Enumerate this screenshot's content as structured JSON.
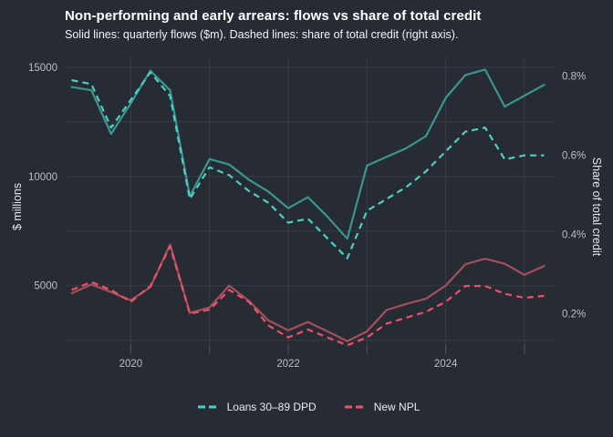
{
  "chart_data": {
    "type": "line",
    "title": "Non-performing and early arrears: flows vs share of total credit",
    "subtitle": "Solid lines: quarterly flows ($m). Dashed lines: share of total credit (right axis).",
    "grid": true,
    "legend_position": "bottom-center",
    "colors": {
      "background": "#272b34",
      "grid": "#363c46",
      "tick_stub": "#4e5560",
      "tick_text": "#b9bec6",
      "title_text": "#ffffff"
    },
    "quarters": [
      "2019Q1",
      "2019Q2",
      "2019Q3",
      "2019Q4",
      "2020Q1",
      "2020Q2",
      "2020Q3",
      "2020Q4",
      "2021Q1",
      "2021Q2",
      "2021Q3",
      "2021Q4",
      "2022Q1",
      "2022Q2",
      "2022Q3",
      "2022Q4",
      "2023Q1",
      "2023Q2",
      "2023Q3",
      "2023Q4",
      "2024Q1",
      "2024Q2",
      "2024Q3",
      "2024Q4",
      "2025Q1"
    ],
    "series": [
      {
        "name": "Loans 30–89 DPD",
        "color": "#49d2c4",
        "solid_color": "#3a968e",
        "flows_m": [
          14100,
          13950,
          11950,
          13350,
          14850,
          13950,
          9100,
          10800,
          10550,
          9850,
          9300,
          8550,
          9050,
          8150,
          7150,
          10500,
          10900,
          11300,
          11850,
          13600,
          14650,
          14900,
          13200,
          13700,
          14200
        ],
        "share_pct": [
          0.79,
          0.78,
          0.67,
          0.74,
          0.81,
          0.75,
          0.49,
          0.57,
          0.55,
          0.51,
          0.48,
          0.43,
          0.44,
          0.39,
          0.34,
          0.46,
          0.49,
          0.52,
          0.56,
          0.61,
          0.66,
          0.67,
          0.59,
          0.6,
          0.6
        ]
      },
      {
        "name": "New NPL",
        "color": "#ee5167",
        "solid_color": "#a4505c",
        "flows_m": [
          4650,
          5050,
          4700,
          4330,
          4930,
          6880,
          3750,
          4000,
          5000,
          4300,
          3400,
          2950,
          3330,
          2900,
          2450,
          2900,
          3880,
          4160,
          4400,
          5000,
          5980,
          6230,
          6000,
          5490,
          5900
        ],
        "share_pct": [
          0.26,
          0.28,
          0.26,
          0.23,
          0.27,
          0.37,
          0.2,
          0.21,
          0.26,
          0.23,
          0.17,
          0.14,
          0.16,
          0.14,
          0.12,
          0.14,
          0.175,
          0.19,
          0.205,
          0.23,
          0.27,
          0.27,
          0.25,
          0.24,
          0.245
        ]
      }
    ],
    "left_axis": {
      "label": "$ millions",
      "ticks": [
        {
          "v": 5000,
          "label": "5000"
        },
        {
          "v": 10000,
          "label": "10000"
        },
        {
          "v": 15000,
          "label": "15000"
        }
      ],
      "gridlines": [
        2500,
        5000,
        7500,
        10000,
        12500,
        15000
      ],
      "ylim": [
        1900,
        15500
      ]
    },
    "right_axis": {
      "label": "Share of total credit",
      "ticks": [
        {
          "v": 0.2,
          "label": "0.2%"
        },
        {
          "v": 0.4,
          "label": "0.4%"
        },
        {
          "v": 0.6,
          "label": "0.6%"
        },
        {
          "v": 0.8,
          "label": "0.8%"
        }
      ],
      "ylim": [
        0.1,
        0.85
      ]
    },
    "x_axis": {
      "gridline_years": [
        2020,
        2021,
        2022,
        2023,
        2024,
        2025
      ],
      "labels": [
        {
          "year": 2020,
          "label": "2020"
        },
        {
          "year": 2022,
          "label": "2022"
        },
        {
          "year": 2024,
          "label": "2024"
        }
      ],
      "xlim": [
        2019.15,
        2025.36
      ]
    }
  }
}
